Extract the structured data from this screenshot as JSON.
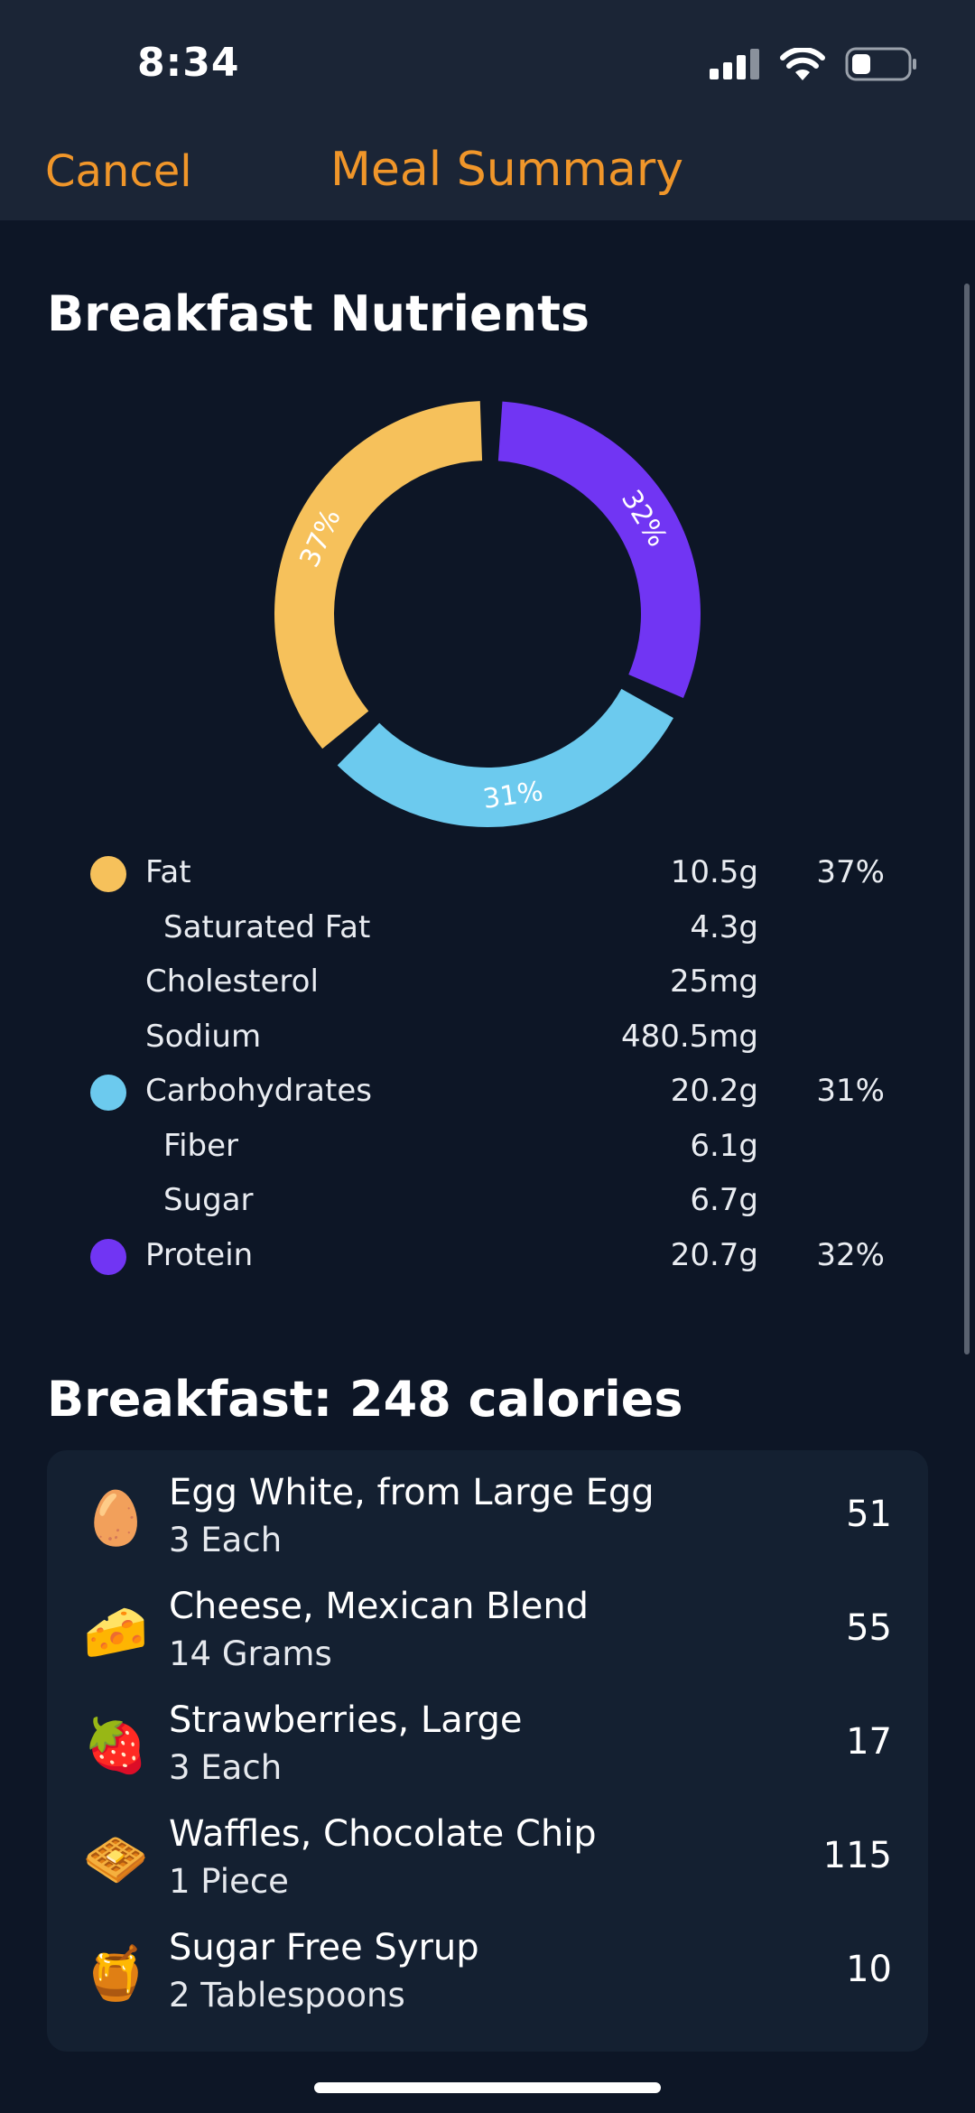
{
  "status_bar": {
    "time": "8:34"
  },
  "nav": {
    "cancel_label": "Cancel",
    "title": "Meal Summary"
  },
  "nutrients_section": {
    "title": "Breakfast Nutrients"
  },
  "colors": {
    "fat": "#f6c15b",
    "carbohydrates": "#6ccaee",
    "protein": "#7135f3",
    "accent": "#f0962a"
  },
  "chart_data": {
    "type": "pie",
    "categories": [
      "Fat",
      "Carbohydrates",
      "Protein"
    ],
    "values": [
      37,
      31,
      32
    ],
    "labels": [
      "37%",
      "31%",
      "32%"
    ],
    "colors": [
      "#f6c15b",
      "#6ccaee",
      "#7135f3"
    ],
    "donut": true
  },
  "nutrients": [
    {
      "label": "Fat",
      "amount": "10.5g",
      "percent": "37%",
      "color": "#f6c15b",
      "indent": false
    },
    {
      "label": "Saturated Fat",
      "amount": "4.3g",
      "percent": "",
      "color": "",
      "indent": true
    },
    {
      "label": "Cholesterol",
      "amount": "25mg",
      "percent": "",
      "color": "",
      "indent": false
    },
    {
      "label": "Sodium",
      "amount": "480.5mg",
      "percent": "",
      "color": "",
      "indent": false
    },
    {
      "label": "Carbohydrates",
      "amount": "20.2g",
      "percent": "31%",
      "color": "#6ccaee",
      "indent": false
    },
    {
      "label": "Fiber",
      "amount": "6.1g",
      "percent": "",
      "color": "",
      "indent": true
    },
    {
      "label": "Sugar",
      "amount": "6.7g",
      "percent": "",
      "color": "",
      "indent": true
    },
    {
      "label": "Protein",
      "amount": "20.7g",
      "percent": "32%",
      "color": "#7135f3",
      "indent": false
    }
  ],
  "calories_section": {
    "title": "Breakfast: 248 calories"
  },
  "foods": [
    {
      "name": "Egg White, from Large Egg",
      "quantity": "3 Each",
      "calories": "51",
      "icon": "egg-icon",
      "glyph": "🥚"
    },
    {
      "name": "Cheese, Mexican Blend",
      "quantity": "14 Grams",
      "calories": "55",
      "icon": "cheese-icon",
      "glyph": "🧀"
    },
    {
      "name": "Strawberries, Large",
      "quantity": "3 Each",
      "calories": "17",
      "icon": "strawberry-icon",
      "glyph": "🍓"
    },
    {
      "name": "Waffles, Chocolate Chip",
      "quantity": "1 Piece",
      "calories": "115",
      "icon": "waffle-icon",
      "glyph": "🧇"
    },
    {
      "name": "Sugar Free Syrup",
      "quantity": "2 Tablespoons",
      "calories": "10",
      "icon": "syrup-icon",
      "glyph": "🍯"
    }
  ]
}
